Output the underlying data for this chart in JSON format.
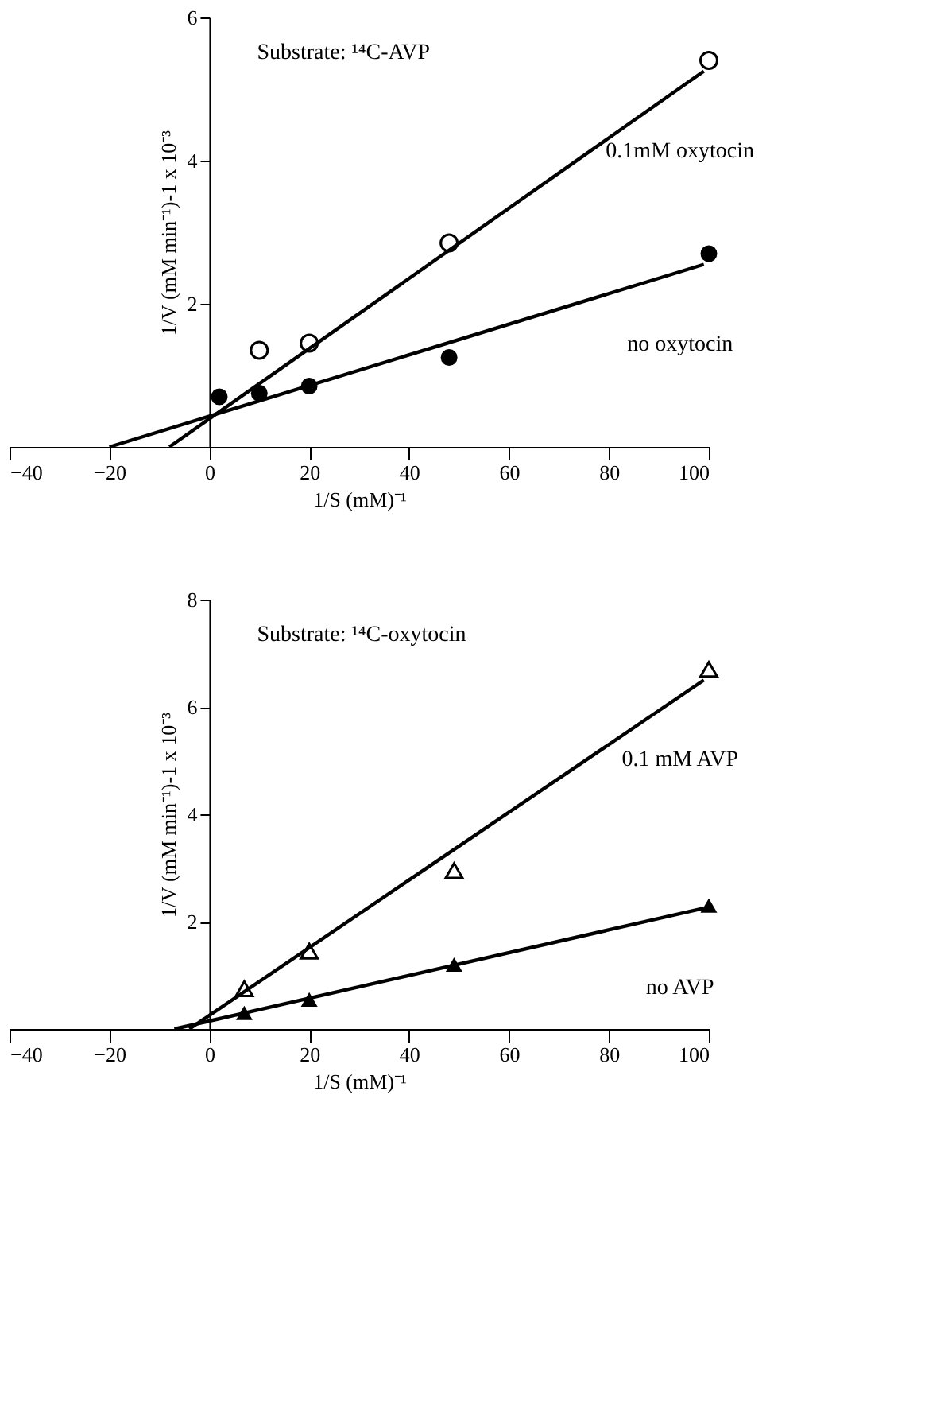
{
  "chart_data": [
    {
      "type": "scatter",
      "xlabel": "1/S (mM)⁻¹",
      "ylabel": "1/V (mM min⁻¹)-1 x 10⁻³",
      "annotations": [
        "Substrate: ¹⁴C-AVP"
      ],
      "xlim": [
        -40,
        100
      ],
      "ylim": [
        0,
        6
      ],
      "xticks": [
        -40,
        -20,
        0,
        20,
        40,
        60,
        80,
        100
      ],
      "yticks": [
        2,
        4,
        6
      ],
      "grid": false,
      "line_style": "solid",
      "series": [
        {
          "type": "line",
          "name": "0.1mM oxytocin",
          "color": "#000000",
          "x": [
            -8,
            99
          ],
          "values": [
            0,
            5.25
          ],
          "marker": "none"
        },
        {
          "color": "#000000",
          "x": [
            10,
            20,
            48,
            100
          ],
          "values": [
            1.35,
            1.45,
            2.85,
            5.4
          ],
          "marker": "circle"
        },
        {
          "type": "line",
          "name": "no oxytocin",
          "color": "#000000",
          "x": [
            -20,
            99
          ],
          "values": [
            0,
            2.55
          ],
          "marker": "none"
        },
        {
          "color": "#000000",
          "x": [
            2,
            10,
            20,
            48,
            100
          ],
          "values": [
            0.7,
            0.75,
            0.85,
            1.25,
            2.7
          ],
          "marker": "circle"
        }
      ]
    },
    {
      "type": "scatter",
      "xlabel": "1/S (mM)⁻¹",
      "ylabel": "1/V (mM min⁻¹)-1 x 10⁻³",
      "annotations": [
        "Substrate: ¹⁴C-oxytocin"
      ],
      "xlim": [
        -40,
        100
      ],
      "ylim": [
        0,
        8
      ],
      "xticks": [
        -40,
        -20,
        0,
        20,
        40,
        60,
        80,
        100
      ],
      "yticks": [
        2,
        4,
        6,
        8
      ],
      "grid": false,
      "line_style": "solid",
      "series": [
        {
          "type": "line",
          "name": "0.1 mM AVP",
          "color": "#000000",
          "x": [
            -4,
            99
          ],
          "values": [
            0,
            6.5
          ],
          "marker": "none"
        },
        {
          "color": "#000000",
          "x": [
            7,
            20,
            49,
            100
          ],
          "values": [
            0.75,
            1.45,
            2.95,
            6.7
          ],
          "marker": "triangle"
        },
        {
          "type": "line",
          "name": "no AVP",
          "color": "#000000",
          "x": [
            -7,
            99
          ],
          "values": [
            0,
            2.25
          ],
          "marker": "none"
        },
        {
          "color": "#000000",
          "x": [
            7,
            20,
            49,
            100
          ],
          "values": [
            0.3,
            0.55,
            1.2,
            2.3
          ],
          "marker": "triangle"
        }
      ]
    }
  ]
}
